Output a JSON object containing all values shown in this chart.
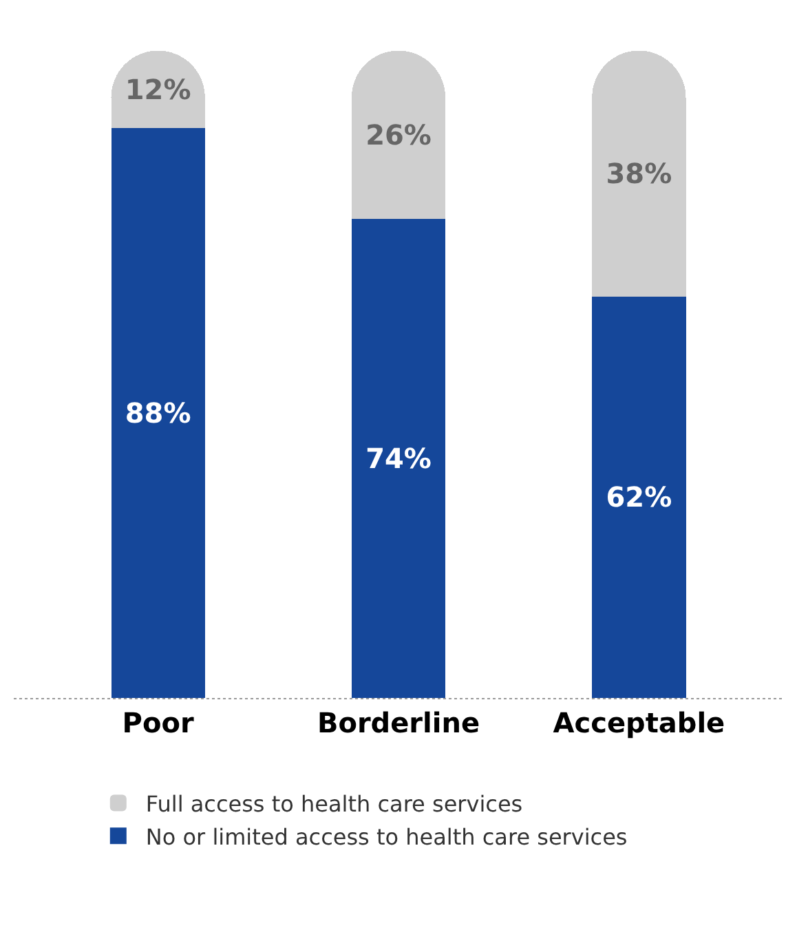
{
  "chart_data": {
    "type": "bar",
    "stacked": true,
    "categories": [
      "Poor",
      "Borderline",
      "Acceptable"
    ],
    "series": [
      {
        "name": "No or limited access to health care services",
        "color": "#15479a",
        "values": [
          88,
          74,
          62
        ],
        "value_labels": [
          "88%",
          "74%",
          "62%"
        ]
      },
      {
        "name": "Full access to health care services",
        "color": "#cfcfcf",
        "values": [
          12,
          26,
          38
        ],
        "value_labels": [
          "12%",
          "26%",
          "38%"
        ]
      }
    ],
    "grid": false,
    "legend": "bottom",
    "tick_labels": "x"
  }
}
